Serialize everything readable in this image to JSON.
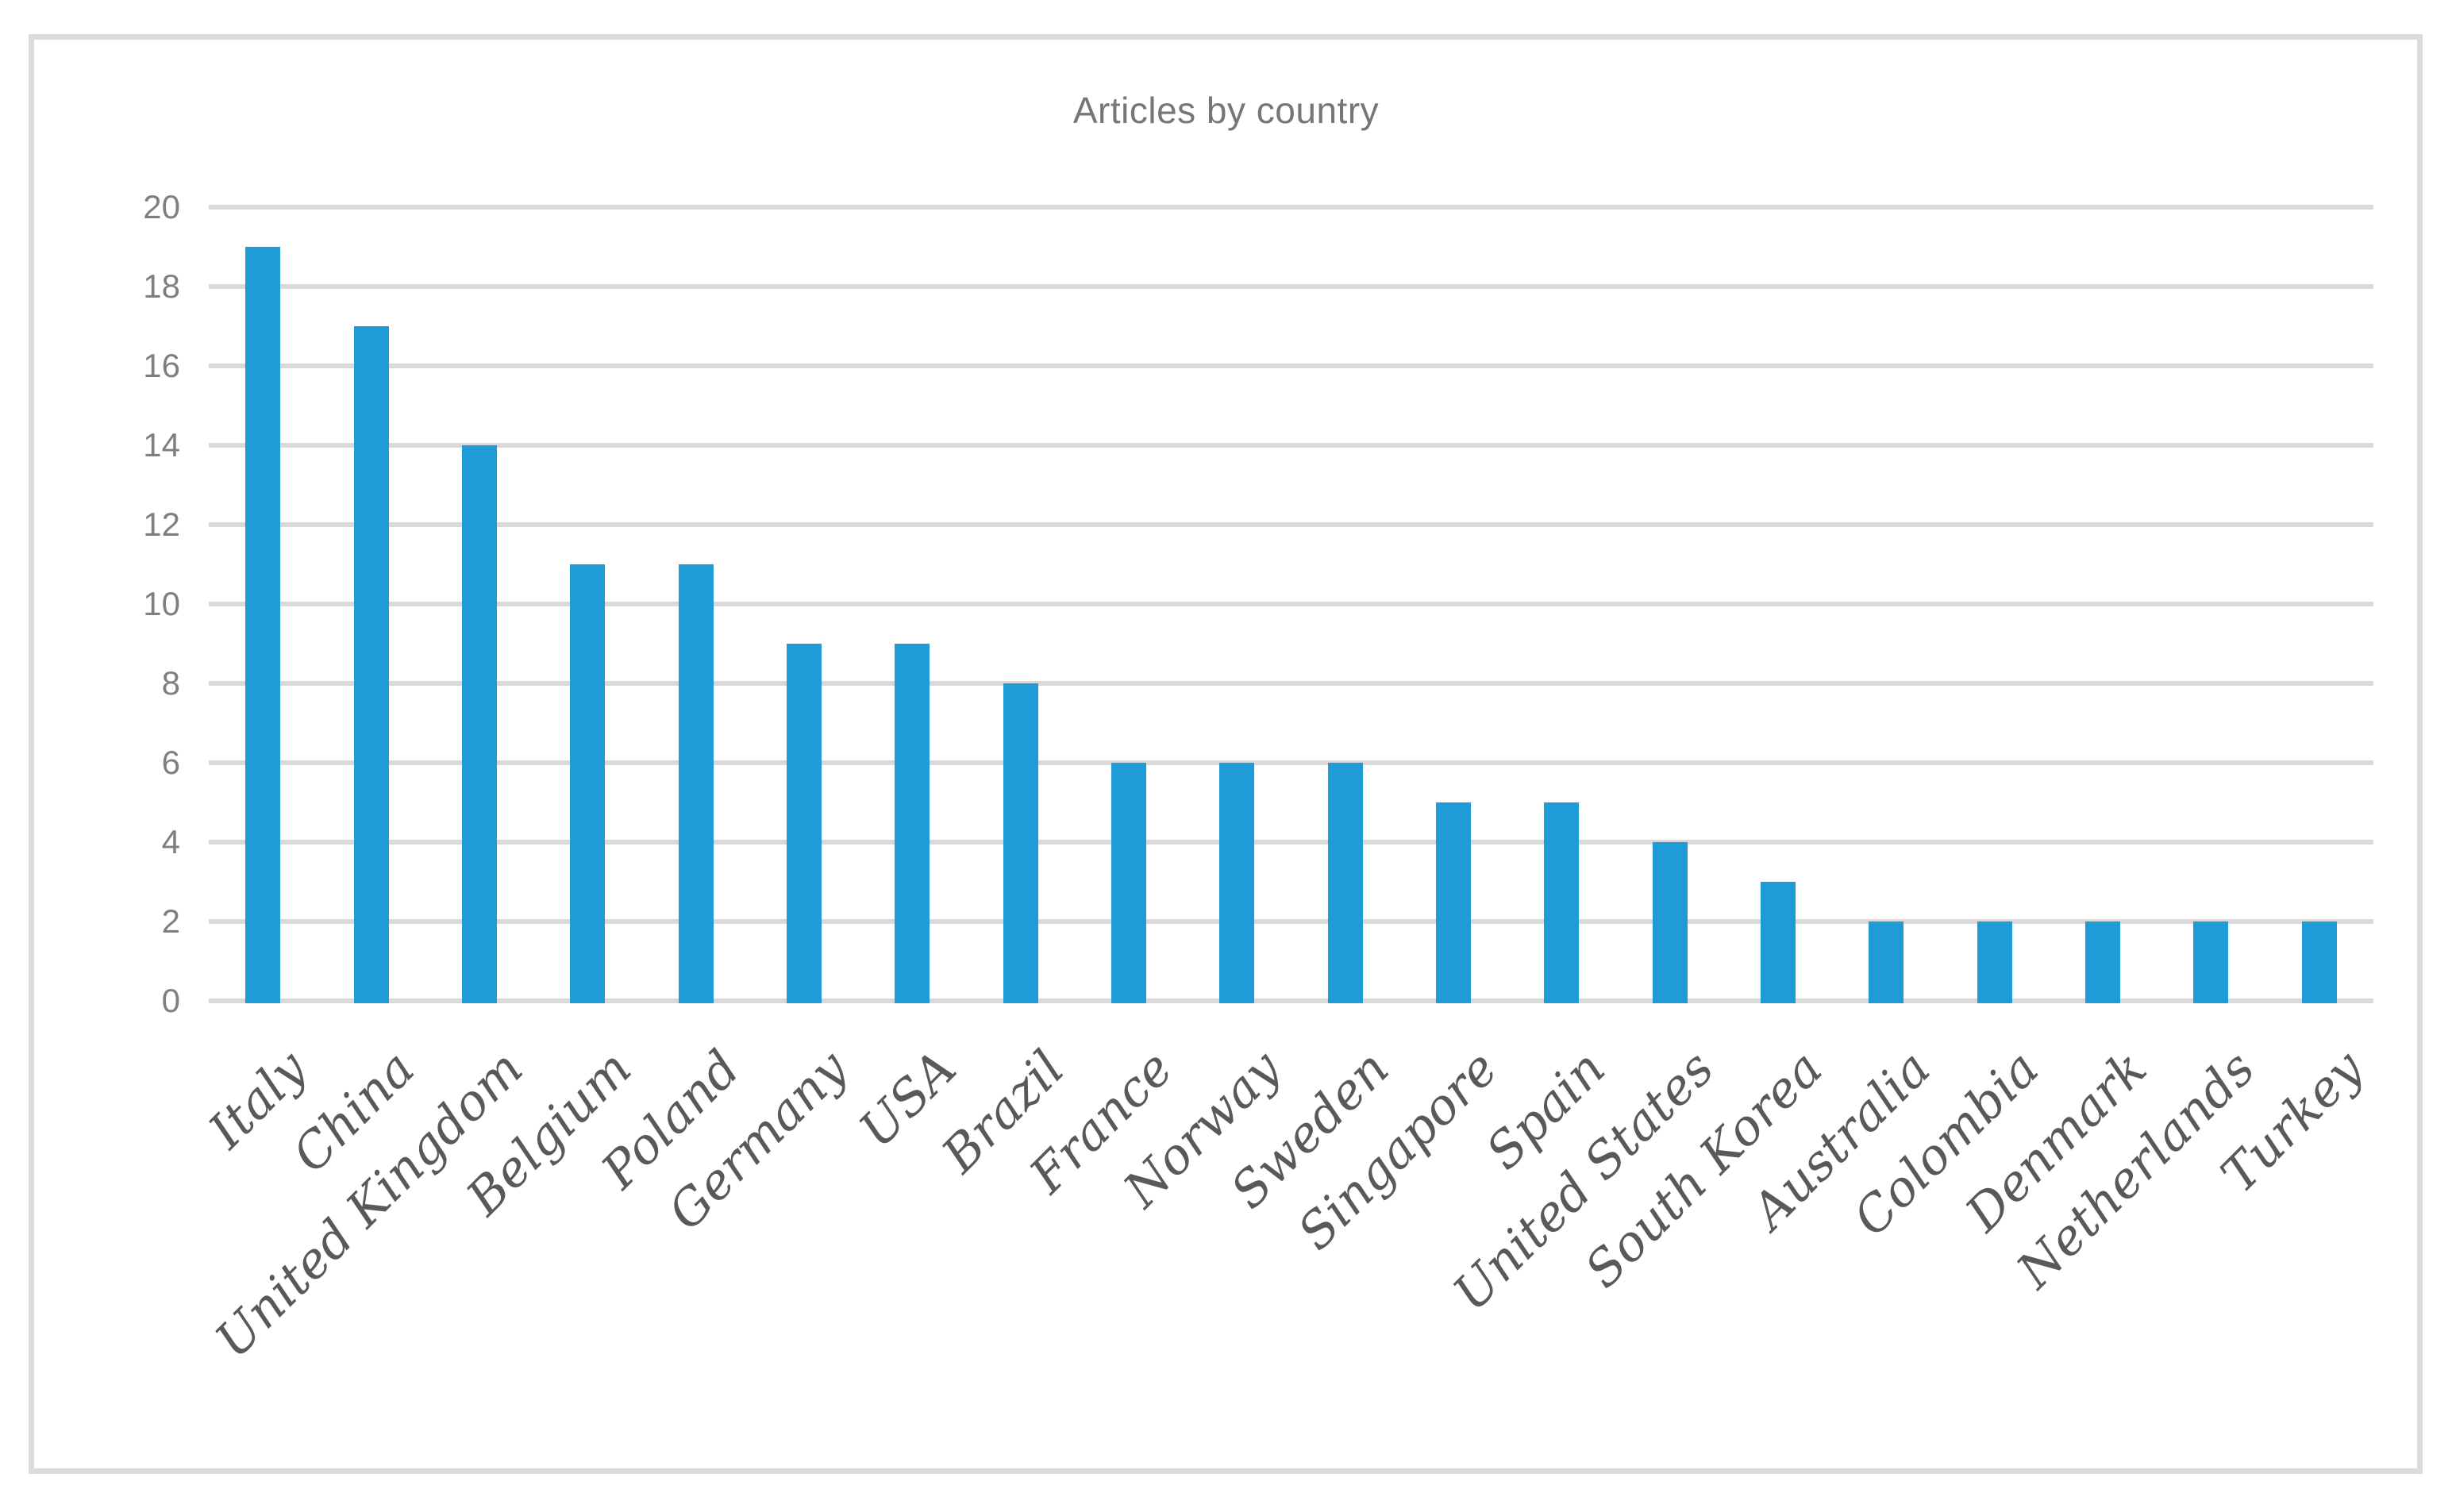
{
  "chart_data": {
    "type": "bar",
    "title": "Articles by country",
    "categories": [
      "Italy",
      "China",
      "United Kingdom",
      "Belgium",
      "Poland",
      "Germany",
      "USA",
      "Brazil",
      "France",
      "Norway",
      "Sweden",
      "Singapore",
      "Spain",
      "United States",
      "South Korea",
      "Australia",
      "Colombia",
      "Denmark",
      "Netherlands",
      "Turkey"
    ],
    "values": [
      19,
      17,
      14,
      11,
      11,
      9,
      9,
      8,
      6,
      6,
      6,
      5,
      5,
      4,
      3,
      2,
      2,
      2,
      2,
      2
    ],
    "xlabel": "",
    "ylabel": "",
    "ylim": [
      0,
      20
    ],
    "yticks": [
      0,
      2,
      4,
      6,
      8,
      10,
      12,
      14,
      16,
      18,
      20
    ],
    "grid": true,
    "legend": false,
    "colors": {
      "bar": "#1f9cd8",
      "gridline": "#d9d9d9",
      "frame_border": "#dbdbdb",
      "title_text": "#767676",
      "y_tick_text": "#7f7f7f",
      "x_tick_text": "#595959",
      "background": "#ffffff"
    }
  }
}
